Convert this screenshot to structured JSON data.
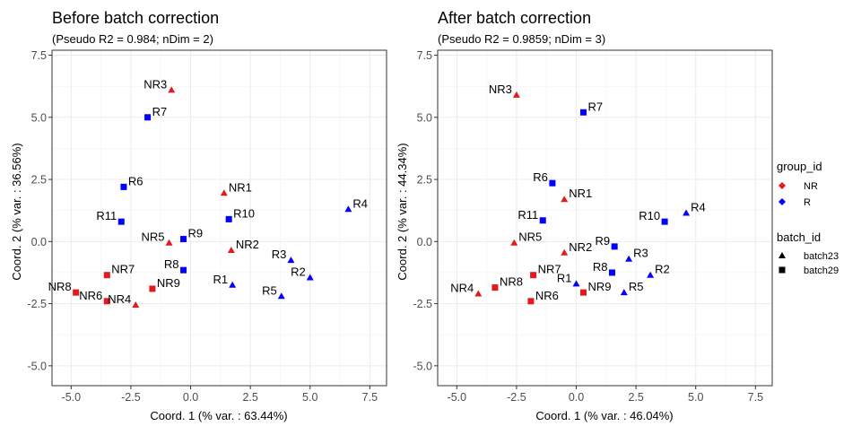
{
  "legend": {
    "color_title": "group_id",
    "color_items": [
      {
        "label": "NR",
        "color": "#e31a1c",
        "marker": "diamond"
      },
      {
        "label": "R",
        "color": "#0000ff",
        "marker": "diamond"
      }
    ],
    "shape_title": "batch_id",
    "shape_items": [
      {
        "label": "batch23",
        "marker": "triangle",
        "color": "#000000"
      },
      {
        "label": "batch29",
        "marker": "square",
        "color": "#000000"
      }
    ],
    "placement": "right"
  },
  "chart_data": [
    {
      "type": "scatter",
      "title": "Before batch correction",
      "subtitle": "(Pseudo R2 = 0.984; nDim = 2)",
      "xlabel": "Coord. 1 (% var. : 63.44%)",
      "ylabel": "Coord. 2 (% var. : 36.56%)",
      "xlim": [
        -5.8,
        8.2
      ],
      "ylim": [
        -5.8,
        7.7
      ],
      "xticks": [
        -5.0,
        -2.5,
        0.0,
        2.5,
        5.0,
        7.5
      ],
      "yticks": [
        -5.0,
        -2.5,
        0.0,
        2.5,
        5.0,
        7.5
      ],
      "tick_labels": [
        "-5.0",
        "-2.5",
        "0.0",
        "2.5",
        "5.0",
        "7.5"
      ],
      "grid": true,
      "points": [
        {
          "label": "NR3",
          "x": -0.8,
          "y": 6.1,
          "group": "NR",
          "batch": "batch23",
          "label_side": "left"
        },
        {
          "label": "R7",
          "x": -1.8,
          "y": 5.0,
          "group": "R",
          "batch": "batch29",
          "label_side": "right"
        },
        {
          "label": "R6",
          "x": -2.8,
          "y": 2.2,
          "group": "R",
          "batch": "batch29",
          "label_side": "right"
        },
        {
          "label": "NR1",
          "x": 1.4,
          "y": 1.95,
          "group": "NR",
          "batch": "batch23",
          "label_side": "right"
        },
        {
          "label": "R4",
          "x": 6.6,
          "y": 1.3,
          "group": "R",
          "batch": "batch23",
          "label_side": "right"
        },
        {
          "label": "R10",
          "x": 1.6,
          "y": 0.9,
          "group": "R",
          "batch": "batch29",
          "label_side": "right"
        },
        {
          "label": "R11",
          "x": -2.9,
          "y": 0.8,
          "group": "R",
          "batch": "batch29",
          "label_side": "left"
        },
        {
          "label": "NR5",
          "x": -0.9,
          "y": -0.05,
          "group": "NR",
          "batch": "batch23",
          "label_side": "left"
        },
        {
          "label": "R9",
          "x": -0.3,
          "y": 0.1,
          "group": "R",
          "batch": "batch29",
          "label_side": "right"
        },
        {
          "label": "NR2",
          "x": 1.7,
          "y": -0.35,
          "group": "NR",
          "batch": "batch23",
          "label_side": "right"
        },
        {
          "label": "R3",
          "x": 4.2,
          "y": -0.75,
          "group": "R",
          "batch": "batch23",
          "label_side": "left"
        },
        {
          "label": "R2",
          "x": 5.0,
          "y": -1.45,
          "group": "R",
          "batch": "batch23",
          "label_side": "left"
        },
        {
          "label": "R8",
          "x": -0.3,
          "y": -1.15,
          "group": "R",
          "batch": "batch29",
          "label_side": "left"
        },
        {
          "label": "NR7",
          "x": -3.5,
          "y": -1.35,
          "group": "NR",
          "batch": "batch29",
          "label_side": "right"
        },
        {
          "label": "R1",
          "x": 1.75,
          "y": -1.75,
          "group": "R",
          "batch": "batch23",
          "label_side": "left"
        },
        {
          "label": "NR9",
          "x": -1.6,
          "y": -1.9,
          "group": "NR",
          "batch": "batch29",
          "label_side": "right"
        },
        {
          "label": "R5",
          "x": 3.8,
          "y": -2.2,
          "group": "R",
          "batch": "batch23",
          "label_side": "left"
        },
        {
          "label": "NR8",
          "x": -4.8,
          "y": -2.05,
          "group": "NR",
          "batch": "batch29",
          "label_side": "left"
        },
        {
          "label": "NR6",
          "x": -3.5,
          "y": -2.4,
          "group": "NR",
          "batch": "batch29",
          "label_side": "left"
        },
        {
          "label": "NR4",
          "x": -2.3,
          "y": -2.55,
          "group": "NR",
          "batch": "batch23",
          "label_side": "left"
        }
      ]
    },
    {
      "type": "scatter",
      "title": "After batch correction",
      "subtitle": "(Pseudo R2 = 0.9859; nDim = 3)",
      "xlabel": "Coord. 1 (% var. : 46.04%)",
      "ylabel": "Coord. 2 (% var. : 44.34%)",
      "xlim": [
        -5.8,
        8.2
      ],
      "ylim": [
        -5.8,
        7.7
      ],
      "xticks": [
        -5.0,
        -2.5,
        0.0,
        2.5,
        5.0,
        7.5
      ],
      "yticks": [
        -5.0,
        -2.5,
        0.0,
        2.5,
        5.0,
        7.5
      ],
      "tick_labels": [
        "-5.0",
        "-2.5",
        "0.0",
        "2.5",
        "5.0",
        "7.5"
      ],
      "grid": true,
      "points": [
        {
          "label": "NR3",
          "x": -2.5,
          "y": 5.9,
          "group": "NR",
          "batch": "batch23",
          "label_side": "left"
        },
        {
          "label": "R7",
          "x": 0.3,
          "y": 5.2,
          "group": "R",
          "batch": "batch29",
          "label_side": "right"
        },
        {
          "label": "R6",
          "x": -1.0,
          "y": 2.35,
          "group": "R",
          "batch": "batch29",
          "label_side": "left"
        },
        {
          "label": "NR1",
          "x": -0.5,
          "y": 1.7,
          "group": "NR",
          "batch": "batch23",
          "label_side": "right"
        },
        {
          "label": "R4",
          "x": 4.6,
          "y": 1.15,
          "group": "R",
          "batch": "batch23",
          "label_side": "right"
        },
        {
          "label": "R11",
          "x": -1.4,
          "y": 0.85,
          "group": "R",
          "batch": "batch29",
          "label_side": "left"
        },
        {
          "label": "R10",
          "x": 3.7,
          "y": 0.8,
          "group": "R",
          "batch": "batch29",
          "label_side": "left"
        },
        {
          "label": "NR5",
          "x": -2.6,
          "y": -0.05,
          "group": "NR",
          "batch": "batch23",
          "label_side": "right"
        },
        {
          "label": "R9",
          "x": 1.6,
          "y": -0.2,
          "group": "R",
          "batch": "batch29",
          "label_side": "left"
        },
        {
          "label": "NR2",
          "x": -0.5,
          "y": -0.45,
          "group": "NR",
          "batch": "batch23",
          "label_side": "right"
        },
        {
          "label": "R3",
          "x": 2.2,
          "y": -0.7,
          "group": "R",
          "batch": "batch23",
          "label_side": "right"
        },
        {
          "label": "NR7",
          "x": -1.8,
          "y": -1.35,
          "group": "NR",
          "batch": "batch29",
          "label_side": "right"
        },
        {
          "label": "R8",
          "x": 1.5,
          "y": -1.25,
          "group": "R",
          "batch": "batch29",
          "label_side": "left"
        },
        {
          "label": "R2",
          "x": 3.1,
          "y": -1.35,
          "group": "R",
          "batch": "batch23",
          "label_side": "right"
        },
        {
          "label": "NR8",
          "x": -3.4,
          "y": -1.85,
          "group": "NR",
          "batch": "batch29",
          "label_side": "right"
        },
        {
          "label": "R1",
          "x": 0.0,
          "y": -1.7,
          "group": "R",
          "batch": "batch23",
          "label_side": "left"
        },
        {
          "label": "NR9",
          "x": 0.3,
          "y": -2.05,
          "group": "NR",
          "batch": "batch29",
          "label_side": "right"
        },
        {
          "label": "R5",
          "x": 2.0,
          "y": -2.05,
          "group": "R",
          "batch": "batch23",
          "label_side": "right"
        },
        {
          "label": "NR4",
          "x": -4.1,
          "y": -2.1,
          "group": "NR",
          "batch": "batch23",
          "label_side": "left"
        },
        {
          "label": "NR6",
          "x": -1.9,
          "y": -2.4,
          "group": "NR",
          "batch": "batch29",
          "label_side": "right"
        }
      ]
    }
  ]
}
